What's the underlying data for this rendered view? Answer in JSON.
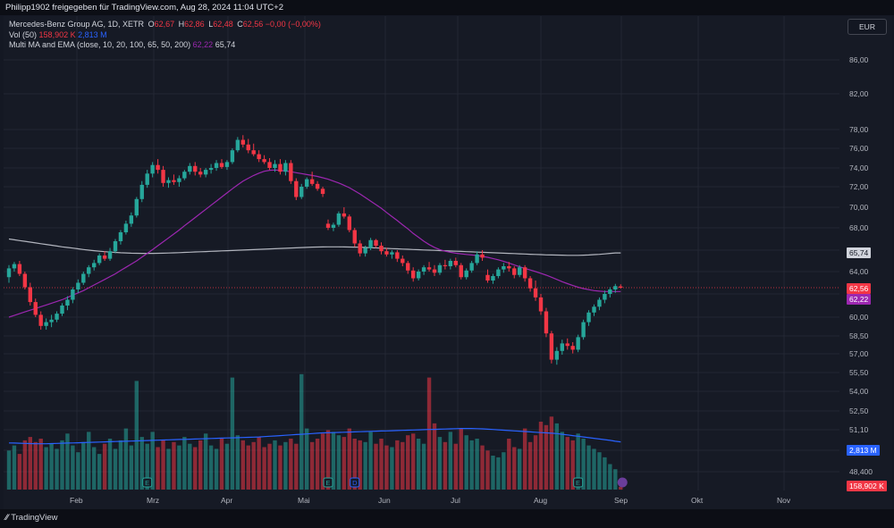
{
  "header": {
    "shared_by": "Philipp1902 freigegeben für TradingView.com, Aug 28, 2024 11:04 UTC+2"
  },
  "legend": {
    "symbol": "Mercedes-Benz Group AG, 1D, XETR",
    "o_label": "O",
    "o_value": "62,67",
    "h_label": "H",
    "h_value": "62,86",
    "l_label": "L",
    "l_value": "62,48",
    "c_label": "C",
    "c_value": "62,56",
    "change": "−0,00 (−0,00%)",
    "vol_label": "Vol (50)",
    "vol_value": "158,902 K",
    "vol_ma": "2,813 M",
    "ma_label": "Multi MA and EMA (close, 10, 20, 100, 65, 50, 200)",
    "ma_value_1": "62,22",
    "ma_value_2": "65,74"
  },
  "currency_button": "EUR",
  "brand": "TradingView",
  "price_labels": {
    "ma200": "65,74",
    "last": "62,56",
    "ma50": "62,22",
    "vol_ma": "2,813 M",
    "vol": "158,902 K"
  },
  "colors": {
    "up": "#26a69a",
    "down": "#f23645",
    "ma50": "#9c27b0",
    "ma200": "#b2b5be",
    "vol_ma": "#2962ff",
    "background": "#161a25"
  },
  "chart_data": {
    "type": "candlestick",
    "title": "Mercedes-Benz Group AG, 1D, XETR",
    "y_ticks": [
      "86,00",
      "82,00",
      "78,00",
      "76,00",
      "74,00",
      "72,00",
      "70,00",
      "68,00",
      "66,00",
      "64,00",
      "62,00",
      "60,00",
      "58,50",
      "57,00",
      "55,50",
      "54,00",
      "52,50",
      "51,10",
      "49,80",
      "48,400"
    ],
    "x_ticks": [
      "Feb",
      "Mrz",
      "Apr",
      "Mai",
      "Jun",
      "Jul",
      "Aug",
      "Sep",
      "Okt",
      "Nov"
    ],
    "candles": [
      [
        63.5,
        64.6,
        63.0,
        64.3
      ],
      [
        64.3,
        64.9,
        64.0,
        64.7
      ],
      [
        64.7,
        65.0,
        63.6,
        63.8
      ],
      [
        63.8,
        64.0,
        62.4,
        62.6
      ],
      [
        62.6,
        63.0,
        61.0,
        61.3
      ],
      [
        61.3,
        61.6,
        60.0,
        60.2
      ],
      [
        60.2,
        60.5,
        59.0,
        59.3
      ],
      [
        59.3,
        59.9,
        59.0,
        59.6
      ],
      [
        59.6,
        60.2,
        59.2,
        59.8
      ],
      [
        59.8,
        60.5,
        59.6,
        60.3
      ],
      [
        60.3,
        61.2,
        60.1,
        61.0
      ],
      [
        61.0,
        61.8,
        60.6,
        61.5
      ],
      [
        61.5,
        62.6,
        61.2,
        62.4
      ],
      [
        62.4,
        63.3,
        62.1,
        63.0
      ],
      [
        63.0,
        64.0,
        62.8,
        63.8
      ],
      [
        63.8,
        64.6,
        63.5,
        64.4
      ],
      [
        64.4,
        65.1,
        64.1,
        64.8
      ],
      [
        64.8,
        65.7,
        64.6,
        65.5
      ],
      [
        65.5,
        65.9,
        65.0,
        65.2
      ],
      [
        65.2,
        66.2,
        65.0,
        65.9
      ],
      [
        65.9,
        67.0,
        65.7,
        66.8
      ],
      [
        66.8,
        67.8,
        66.5,
        67.6
      ],
      [
        67.6,
        68.7,
        67.4,
        68.4
      ],
      [
        68.4,
        69.5,
        68.1,
        69.2
      ],
      [
        69.2,
        71.0,
        69.0,
        70.8
      ],
      [
        70.8,
        72.6,
        70.5,
        72.2
      ],
      [
        72.2,
        73.8,
        71.9,
        73.4
      ],
      [
        73.4,
        74.6,
        73.0,
        74.3
      ],
      [
        74.3,
        74.9,
        73.4,
        73.8
      ],
      [
        73.8,
        74.2,
        72.0,
        72.4
      ],
      [
        72.4,
        73.0,
        71.9,
        72.7
      ],
      [
        72.7,
        73.3,
        72.2,
        72.5
      ],
      [
        72.5,
        73.2,
        72.0,
        72.9
      ],
      [
        72.9,
        73.8,
        72.7,
        73.6
      ],
      [
        73.6,
        74.5,
        73.3,
        74.2
      ],
      [
        74.2,
        74.6,
        73.2,
        73.6
      ],
      [
        73.6,
        74.0,
        73.0,
        73.3
      ],
      [
        73.3,
        74.0,
        73.0,
        73.8
      ],
      [
        73.8,
        74.4,
        73.4,
        74.0
      ],
      [
        74.0,
        74.8,
        73.7,
        74.5
      ],
      [
        74.5,
        74.9,
        73.9,
        74.1
      ],
      [
        74.1,
        74.8,
        73.8,
        74.6
      ],
      [
        74.6,
        76.0,
        74.4,
        75.8
      ],
      [
        75.8,
        77.2,
        75.6,
        76.9
      ],
      [
        76.9,
        77.4,
        76.1,
        76.4
      ],
      [
        76.4,
        77.0,
        75.5,
        75.8
      ],
      [
        75.8,
        76.5,
        75.2,
        75.4
      ],
      [
        75.4,
        75.8,
        74.6,
        74.9
      ],
      [
        74.9,
        75.3,
        74.4,
        74.6
      ],
      [
        74.6,
        75.0,
        73.8,
        74.0
      ],
      [
        74.0,
        74.8,
        73.6,
        74.4
      ],
      [
        74.4,
        74.9,
        73.3,
        73.6
      ],
      [
        73.6,
        74.8,
        73.2,
        74.5
      ],
      [
        74.5,
        74.8,
        72.3,
        72.6
      ],
      [
        72.6,
        72.9,
        70.7,
        71.0
      ],
      [
        71.0,
        72.3,
        70.8,
        72.0
      ],
      [
        72.0,
        73.0,
        71.8,
        72.8
      ],
      [
        72.8,
        73.6,
        72.1,
        72.3
      ],
      [
        72.3,
        72.6,
        71.6,
        71.8
      ],
      [
        71.8,
        72.0,
        71.0,
        71.3
      ],
      [
        68.4,
        68.8,
        67.8,
        68.0
      ],
      [
        68.0,
        68.5,
        67.7,
        68.3
      ],
      [
        68.3,
        69.6,
        68.1,
        69.4
      ],
      [
        69.4,
        70.0,
        68.9,
        69.1
      ],
      [
        69.1,
        69.3,
        67.6,
        67.8
      ],
      [
        67.8,
        68.0,
        66.3,
        66.6
      ],
      [
        66.6,
        66.9,
        65.4,
        65.7
      ],
      [
        65.7,
        66.4,
        65.4,
        66.2
      ],
      [
        66.2,
        67.1,
        66.0,
        66.9
      ],
      [
        66.9,
        67.0,
        66.2,
        66.4
      ],
      [
        66.4,
        66.7,
        65.6,
        65.9
      ],
      [
        65.9,
        66.2,
        65.4,
        65.6
      ],
      [
        65.6,
        66.0,
        65.2,
        65.8
      ],
      [
        65.8,
        66.0,
        64.9,
        65.2
      ],
      [
        65.2,
        65.5,
        64.5,
        64.8
      ],
      [
        64.8,
        65.0,
        63.8,
        64.1
      ],
      [
        64.1,
        64.4,
        63.1,
        63.4
      ],
      [
        63.4,
        64.2,
        63.2,
        64.0
      ],
      [
        64.0,
        64.6,
        63.7,
        64.4
      ],
      [
        64.4,
        64.9,
        64.0,
        64.2
      ],
      [
        64.2,
        64.6,
        63.6,
        63.9
      ],
      [
        63.9,
        64.8,
        63.7,
        64.6
      ],
      [
        64.6,
        65.1,
        64.2,
        64.5
      ],
      [
        64.5,
        65.2,
        64.2,
        65.0
      ],
      [
        65.0,
        65.3,
        64.4,
        64.6
      ],
      [
        64.6,
        64.8,
        63.3,
        63.5
      ],
      [
        63.5,
        64.3,
        63.3,
        64.1
      ],
      [
        64.1,
        65.0,
        63.9,
        64.8
      ],
      [
        64.8,
        65.9,
        64.6,
        65.6
      ],
      [
        65.6,
        66.0,
        65.0,
        65.3
      ],
      [
        63.7,
        64.2,
        63.0,
        63.2
      ],
      [
        63.2,
        63.8,
        62.9,
        63.6
      ],
      [
        63.6,
        64.4,
        63.4,
        64.2
      ],
      [
        64.2,
        64.8,
        63.9,
        64.5
      ],
      [
        64.5,
        64.9,
        64.0,
        64.3
      ],
      [
        64.3,
        64.5,
        63.4,
        63.7
      ],
      [
        63.7,
        64.6,
        63.5,
        64.4
      ],
      [
        64.4,
        64.6,
        63.1,
        63.4
      ],
      [
        63.4,
        63.6,
        62.2,
        62.5
      ],
      [
        62.5,
        63.2,
        61.4,
        61.7
      ],
      [
        61.7,
        62.0,
        60.2,
        60.5
      ],
      [
        60.5,
        60.8,
        58.4,
        58.7
      ],
      [
        58.7,
        58.9,
        56.3,
        56.6
      ],
      [
        56.6,
        57.6,
        56.2,
        57.3
      ],
      [
        57.3,
        58.2,
        57.0,
        57.9
      ],
      [
        57.9,
        58.3,
        57.4,
        57.7
      ],
      [
        57.7,
        58.0,
        57.1,
        57.4
      ],
      [
        57.4,
        58.6,
        57.2,
        58.4
      ],
      [
        58.4,
        59.8,
        58.2,
        59.6
      ],
      [
        59.6,
        60.6,
        59.3,
        60.4
      ],
      [
        60.4,
        61.1,
        60.1,
        60.9
      ],
      [
        60.9,
        61.7,
        60.6,
        61.5
      ],
      [
        61.5,
        62.3,
        61.2,
        62.0
      ],
      [
        62.0,
        62.6,
        61.7,
        62.4
      ],
      [
        62.4,
        62.9,
        62.1,
        62.7
      ],
      [
        62.67,
        62.86,
        62.48,
        62.56
      ]
    ],
    "volume_m": [
      2.3,
      2.6,
      2.1,
      2.9,
      3.1,
      2.8,
      3.0,
      2.5,
      2.7,
      2.4,
      2.9,
      3.3,
      2.6,
      2.2,
      2.8,
      3.4,
      2.5,
      2.1,
      2.7,
      3.0,
      2.4,
      2.9,
      3.6,
      2.6,
      6.4,
      3.1,
      2.7,
      3.4,
      2.5,
      2.9,
      2.4,
      2.8,
      2.6,
      3.1,
      2.7,
      2.5,
      2.9,
      3.3,
      2.6,
      2.4,
      3.0,
      2.7,
      6.6,
      3.2,
      2.9,
      2.6,
      2.8,
      3.1,
      2.5,
      2.7,
      2.9,
      2.6,
      2.8,
      3.0,
      2.7,
      6.8,
      3.6,
      2.8,
      3.0,
      3.3,
      3.5,
      3.4,
      3.2,
      3.1,
      3.6,
      3.0,
      2.9,
      2.8,
      3.4,
      2.7,
      3.0,
      2.6,
      2.5,
      2.9,
      2.8,
      3.2,
      3.3,
      3.0,
      2.7,
      6.6,
      3.9,
      3.1,
      2.8,
      3.4,
      2.7,
      3.6,
      3.2,
      2.9,
      3.0,
      2.6,
      2.3,
      2.0,
      1.9,
      2.2,
      3.0,
      2.5,
      2.4,
      3.6,
      2.8,
      3.2,
      4.0,
      3.8,
      4.3,
      3.9,
      3.4,
      3.1,
      2.9,
      3.3,
      3.0,
      2.6,
      2.4,
      2.2,
      1.9,
      1.5,
      1.2,
      0.16
    ],
    "ma50": [
      60.0,
      60.15,
      60.3,
      60.45,
      60.6,
      60.75,
      60.9,
      61.05,
      61.2,
      61.35,
      61.5,
      61.7,
      61.9,
      62.1,
      62.3,
      62.55,
      62.8,
      63.05,
      63.3,
      63.55,
      63.8,
      64.1,
      64.4,
      64.7,
      65.0,
      65.35,
      65.7,
      66.05,
      66.4,
      66.75,
      67.1,
      67.45,
      67.8,
      68.2,
      68.6,
      69.0,
      69.4,
      69.8,
      70.2,
      70.6,
      71.0,
      71.4,
      71.8,
      72.2,
      72.6,
      72.9,
      73.2,
      73.45,
      73.65,
      73.75,
      73.78,
      73.75,
      73.68,
      73.6,
      73.5,
      73.4,
      73.3,
      73.2,
      73.1,
      72.95,
      72.8,
      72.6,
      72.4,
      72.15,
      71.9,
      71.6,
      71.3,
      70.95,
      70.6,
      70.25,
      69.9,
      69.5,
      69.1,
      68.7,
      68.3,
      67.9,
      67.5,
      67.15,
      66.8,
      66.5,
      66.25,
      66.05,
      65.9,
      65.8,
      65.72,
      65.66,
      65.6,
      65.55,
      65.5,
      65.42,
      65.33,
      65.22,
      65.1,
      64.95,
      64.8,
      64.62,
      64.45,
      64.3,
      64.15,
      64.0,
      63.85,
      63.68,
      63.5,
      63.3,
      63.1,
      62.92,
      62.75,
      62.6,
      62.48,
      62.38,
      62.3,
      62.25,
      62.22,
      62.22,
      62.22,
      62.22
    ],
    "ma200": [
      67.0,
      66.93,
      66.86,
      66.79,
      66.72,
      66.65,
      66.58,
      66.51,
      66.44,
      66.37,
      66.3,
      66.24,
      66.18,
      66.12,
      66.06,
      66.0,
      65.95,
      65.9,
      65.86,
      65.82,
      65.79,
      65.76,
      65.74,
      65.72,
      65.71,
      65.7,
      65.7,
      65.7,
      65.71,
      65.72,
      65.73,
      65.75,
      65.77,
      65.79,
      65.81,
      65.83,
      65.85,
      65.87,
      65.89,
      65.91,
      65.93,
      65.95,
      65.97,
      65.99,
      66.01,
      66.03,
      66.05,
      66.07,
      66.09,
      66.11,
      66.13,
      66.15,
      66.17,
      66.19,
      66.21,
      66.23,
      66.25,
      66.27,
      66.28,
      66.29,
      66.3,
      66.3,
      66.3,
      66.29,
      66.28,
      66.27,
      66.26,
      66.24,
      66.22,
      66.2,
      66.18,
      66.16,
      66.14,
      66.12,
      66.1,
      66.08,
      66.06,
      66.04,
      66.02,
      66.0,
      65.98,
      65.96,
      65.94,
      65.92,
      65.9,
      65.88,
      65.86,
      65.84,
      65.82,
      65.8,
      65.78,
      65.76,
      65.74,
      65.72,
      65.7,
      65.68,
      65.66,
      65.64,
      65.62,
      65.6,
      65.58,
      65.56,
      65.55,
      65.54,
      65.53,
      65.52,
      65.52,
      65.52,
      65.53,
      65.55,
      65.58,
      65.61,
      65.65,
      65.7,
      65.74,
      65.74
    ],
    "vol_ma_m": [
      2.75,
      2.74,
      2.73,
      2.72,
      2.71,
      2.7,
      2.7,
      2.7,
      2.71,
      2.72,
      2.73,
      2.74,
      2.75,
      2.76,
      2.77,
      2.78,
      2.79,
      2.8,
      2.81,
      2.82,
      2.83,
      2.84,
      2.85,
      2.86,
      2.87,
      2.88,
      2.89,
      2.9,
      2.91,
      2.92,
      2.93,
      2.94,
      2.95,
      2.96,
      2.97,
      2.98,
      2.99,
      3.0,
      3.01,
      3.02,
      3.03,
      3.04,
      3.05,
      3.06,
      3.07,
      3.08,
      3.09,
      3.1,
      3.12,
      3.14,
      3.16,
      3.18,
      3.2,
      3.22,
      3.24,
      3.26,
      3.28,
      3.3,
      3.32,
      3.34,
      3.35,
      3.36,
      3.37,
      3.38,
      3.39,
      3.4,
      3.41,
      3.42,
      3.43,
      3.44,
      3.45,
      3.46,
      3.47,
      3.48,
      3.49,
      3.5,
      3.51,
      3.52,
      3.53,
      3.54,
      3.55,
      3.56,
      3.57,
      3.58,
      3.59,
      3.6,
      3.6,
      3.6,
      3.59,
      3.58,
      3.56,
      3.54,
      3.52,
      3.5,
      3.48,
      3.46,
      3.44,
      3.42,
      3.4,
      3.38,
      3.36,
      3.34,
      3.32,
      3.3,
      3.26,
      3.22,
      3.18,
      3.14,
      3.1,
      3.06,
      3.02,
      2.98,
      2.94,
      2.9,
      2.85,
      2.813
    ],
    "events": [
      {
        "label": "E",
        "date": "Feb",
        "index": 26,
        "color": "#26a69a"
      },
      {
        "label": "E",
        "date": "Mai",
        "index": 60,
        "color": "#26a69a"
      },
      {
        "label": "D",
        "date": "Mai",
        "index": 65,
        "color": "#2962ff"
      },
      {
        "label": "E",
        "date": "Aug",
        "index": 107,
        "color": "#26a69a"
      },
      {
        "label": "E",
        "date": "Nov",
        "index": 170,
        "color": "#9c27b0"
      }
    ]
  }
}
